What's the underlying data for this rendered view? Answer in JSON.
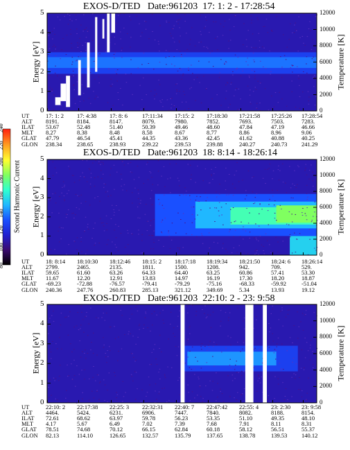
{
  "instrument": "EXOS-D/TED",
  "panels": [
    {
      "title": "EXOS-D/TED   Date:961203  17: 1: 2 - 17:28:54",
      "left_label": "Energy [eV]",
      "right_label": "Temperature [K]",
      "energy_ticks": [
        "0",
        "1",
        "2",
        "3",
        "4",
        "5"
      ],
      "temp_ticks": [
        "0",
        "2000",
        "4000",
        "6000",
        "8000",
        "10000",
        "12000"
      ],
      "ephem_labels": [
        "UT",
        "ALT",
        "ILAT",
        "MLT",
        "GLAT",
        "GLON"
      ],
      "ephem_cols": [
        [
          "17: 1: 2",
          "8191.",
          "53.67",
          "8.27",
          "47.79",
          "238.34"
        ],
        [
          "17: 4:38",
          "8184.",
          "52.48",
          "8.38",
          "46.54",
          "238.65"
        ],
        [
          "17: 8: 6",
          "8147.",
          "51.40",
          "8.48",
          "45.41",
          "238.93"
        ],
        [
          "17:11:34",
          "8079.",
          "50.39",
          "8.58",
          "44.35",
          "239.22"
        ],
        [
          "17:15: 2",
          "7980.",
          "49.46",
          "8.67",
          "43.36",
          "239.53"
        ],
        [
          "17:18:30",
          "7852.",
          "48.60",
          "8.77",
          "42.45",
          "239.88"
        ],
        [
          "17:21:58",
          "7693.",
          "47.84",
          "8.86",
          "41.62",
          "240.27"
        ],
        [
          "17:25:26",
          "7503.",
          "47.19",
          "8.96",
          "40.88",
          "240.73"
        ],
        [
          "17:28:54",
          "7283.",
          "46.66",
          "9.06",
          "40.25",
          "241.29"
        ]
      ]
    },
    {
      "title": "EXOS-D/TED   Date:961203  18: 8:14 - 18:26:14",
      "left_label": "Energy [eV]",
      "right_label": "Temperature [K]",
      "energy_ticks": [
        "0",
        "1",
        "2",
        "3",
        "4",
        "5"
      ],
      "temp_ticks": [
        "0",
        "2000",
        "4000",
        "6000",
        "8000",
        "10000",
        "12000"
      ],
      "ephem_labels": [
        "UT",
        "ALT",
        "ILAT",
        "MLT",
        "GLAT",
        "GLON"
      ],
      "ephem_cols": [
        [
          "18: 8:14",
          "2799.",
          "59.65",
          "11.67",
          "-69.23",
          "240.36"
        ],
        [
          "18:10:30",
          "2465.",
          "61.60",
          "12.20",
          "-72.88",
          "247.76"
        ],
        [
          "18:12:46",
          "2135.",
          "63.26",
          "12.91",
          "-76.57",
          "260.83"
        ],
        [
          "18:15: 2",
          "1811.",
          "64.33",
          "13.83",
          "-79.41",
          "285.13"
        ],
        [
          "18:17:18",
          "1500.",
          "64.40",
          "14.97",
          "-79.29",
          "321.12"
        ],
        [
          "18:19:34",
          "1208.",
          "63.25",
          "16.19",
          "-75.16",
          "349.69"
        ],
        [
          "18:21:50",
          "942.",
          "60.86",
          "17.30",
          "-68.33",
          "5.34"
        ],
        [
          "18:24: 6",
          "709.",
          "57.41",
          "18.20",
          "-59.92",
          "13.93"
        ],
        [
          "18:26:14",
          "529.",
          "53.30",
          "18.87",
          "-51.04",
          "19.12"
        ]
      ]
    },
    {
      "title": "EXOS-D/TED   Date:961203  22:10: 2 - 23: 9:58",
      "left_label": "Energy [eV]",
      "right_label": "Temperature [K]",
      "energy_ticks": [
        "0",
        "1",
        "2",
        "3",
        "4",
        "5"
      ],
      "temp_ticks": [
        "0",
        "2000",
        "4000",
        "6000",
        "8000",
        "10000",
        "12000"
      ],
      "ephem_labels": [
        "UT",
        "ALT",
        "ILAT",
        "MLT",
        "GLAT",
        "GLON"
      ],
      "ephem_cols": [
        [
          "22:10: 2",
          "4464.",
          "72.61",
          "4.17",
          "78.51",
          "82.13"
        ],
        [
          "22:17:38",
          "5424.",
          "68.62",
          "5.67",
          "74.68",
          "114.10"
        ],
        [
          "22:25: 3",
          "6231.",
          "63.97",
          "6.49",
          "70.12",
          "126.65"
        ],
        [
          "22:32:31",
          "6906.",
          "59.78",
          "7.02",
          "66.15",
          "132.57"
        ],
        [
          "22:40: 7",
          "7447.",
          "56.23",
          "7.39",
          "62.84",
          "135.79"
        ],
        [
          "22:47:42",
          "7840.",
          "53.35",
          "7.68",
          "60.18",
          "137.65"
        ],
        [
          "22:55: 4",
          "8082.",
          "51.10",
          "7.91",
          "58.12",
          "138.78"
        ],
        [
          "23: 2:30",
          "8188.",
          "49.35",
          "8.11",
          "56.51",
          "139.53"
        ],
        [
          "23: 9:58",
          "8154.",
          "48.10",
          "8.31",
          "55.37",
          "140.12"
        ]
      ]
    }
  ],
  "colorbar": {
    "label": "Second Harmonic Current",
    "ticks": [
      "80",
      "100",
      "120",
      "140",
      "160",
      "180",
      "200",
      "220",
      "240"
    ],
    "colors": [
      "#000000",
      "#3a0a70",
      "#2020d0",
      "#1a50ff",
      "#20b8ff",
      "#30ffd0",
      "#80ff60",
      "#ffff30",
      "#ffa020",
      "#ff2010"
    ]
  },
  "chart_data": [
    {
      "type": "heatmap",
      "title": "EXOS-D/TED   Date:961203  17: 1: 2 - 17:28:54",
      "xlabel": "UT",
      "ylabel": "Energy [eV]",
      "y2label": "Temperature [K]",
      "ylim": [
        0,
        5
      ],
      "y2lim": [
        0,
        12000
      ],
      "x_ticks": [
        "17: 1: 2",
        "17: 4:38",
        "17: 8: 6",
        "17:11:34",
        "17:15: 2",
        "17:18:30",
        "17:21:58",
        "17:25:26",
        "17:28:54"
      ],
      "bands": [
        {
          "emin": 0,
          "emax": 5,
          "level": 110
        },
        {
          "emin": 1.9,
          "emax": 3.0,
          "level": 125
        },
        {
          "emin": 2.2,
          "emax": 2.75,
          "level": 135
        }
      ],
      "gaps": [
        {
          "t0": 0.03,
          "t1": 0.05,
          "emin": 0.3,
          "emax": 0.7
        },
        {
          "t0": 0.05,
          "t1": 0.07,
          "emin": 0.5,
          "emax": 1.4
        },
        {
          "t0": 0.07,
          "t1": 0.085,
          "emin": 0.2,
          "emax": 1.8
        },
        {
          "t0": 0.115,
          "t1": 0.125,
          "emin": 0.8,
          "emax": 2.6
        },
        {
          "t0": 0.148,
          "t1": 0.158,
          "emin": 1.2,
          "emax": 3.5
        },
        {
          "t0": 0.178,
          "t1": 0.186,
          "emin": 2.0,
          "emax": 4.8
        },
        {
          "t0": 0.205,
          "t1": 0.212,
          "emin": 3.7,
          "emax": 4.7
        },
        {
          "t0": 0.222,
          "t1": 0.232,
          "emin": 3.0,
          "emax": 5.0
        },
        {
          "t0": 0.238,
          "t1": 0.252,
          "emin": 4.0,
          "emax": 5.0
        }
      ]
    },
    {
      "type": "heatmap",
      "title": "EXOS-D/TED   Date:961203  18: 8:14 - 18:26:14",
      "xlabel": "UT",
      "ylabel": "Energy [eV]",
      "y2label": "Temperature [K]",
      "ylim": [
        0,
        5
      ],
      "y2lim": [
        0,
        12000
      ],
      "x_ticks": [
        "18: 8:14",
        "18:10:30",
        "18:12:46",
        "18:15: 2",
        "18:17:18",
        "18:19:34",
        "18:21:50",
        "18:24: 6",
        "18:26:14"
      ],
      "bands": [
        {
          "emin": 0,
          "emax": 5,
          "level": 110
        },
        {
          "tmin": 0.4,
          "emin": 1.0,
          "emax": 3.2,
          "level": 130
        },
        {
          "tmin": 0.55,
          "emin": 1.4,
          "emax": 2.8,
          "level": 145
        },
        {
          "tmin": 0.68,
          "emin": 1.6,
          "emax": 2.5,
          "level": 165
        },
        {
          "tmin": 0.85,
          "emin": 1.7,
          "emax": 2.6,
          "level": 180
        },
        {
          "tmin": 0.9,
          "emin": 0.0,
          "emax": 1.0,
          "level": 150
        }
      ],
      "gaps": []
    },
    {
      "type": "heatmap",
      "title": "EXOS-D/TED   Date:961203  22:10: 2 - 23: 9:58",
      "xlabel": "UT",
      "ylabel": "Energy [eV]",
      "y2label": "Temperature [K]",
      "ylim": [
        0,
        5
      ],
      "y2lim": [
        0,
        12000
      ],
      "x_ticks": [
        "22:10: 2",
        "22:17:38",
        "22:25: 3",
        "22:32:31",
        "22:40: 7",
        "22:47:42",
        "22:55: 4",
        "23: 2:30",
        "23: 9:58"
      ],
      "bands": [
        {
          "emin": 0,
          "emax": 5,
          "level": 110
        },
        {
          "tmin": 0.5,
          "tmax": 0.93,
          "emin": 1.6,
          "emax": 2.9,
          "level": 125
        },
        {
          "tmin": 0.52,
          "tmax": 0.85,
          "emin": 1.9,
          "emax": 2.6,
          "level": 140
        }
      ],
      "gaps": [
        {
          "t0": 0.495,
          "t1": 0.51,
          "emin": 0,
          "emax": 5
        },
        {
          "t0": 0.735,
          "t1": 0.765,
          "emin": 0,
          "emax": 5
        },
        {
          "t0": 0.8,
          "t1": 0.815,
          "emin": 0,
          "emax": 5
        }
      ]
    }
  ]
}
